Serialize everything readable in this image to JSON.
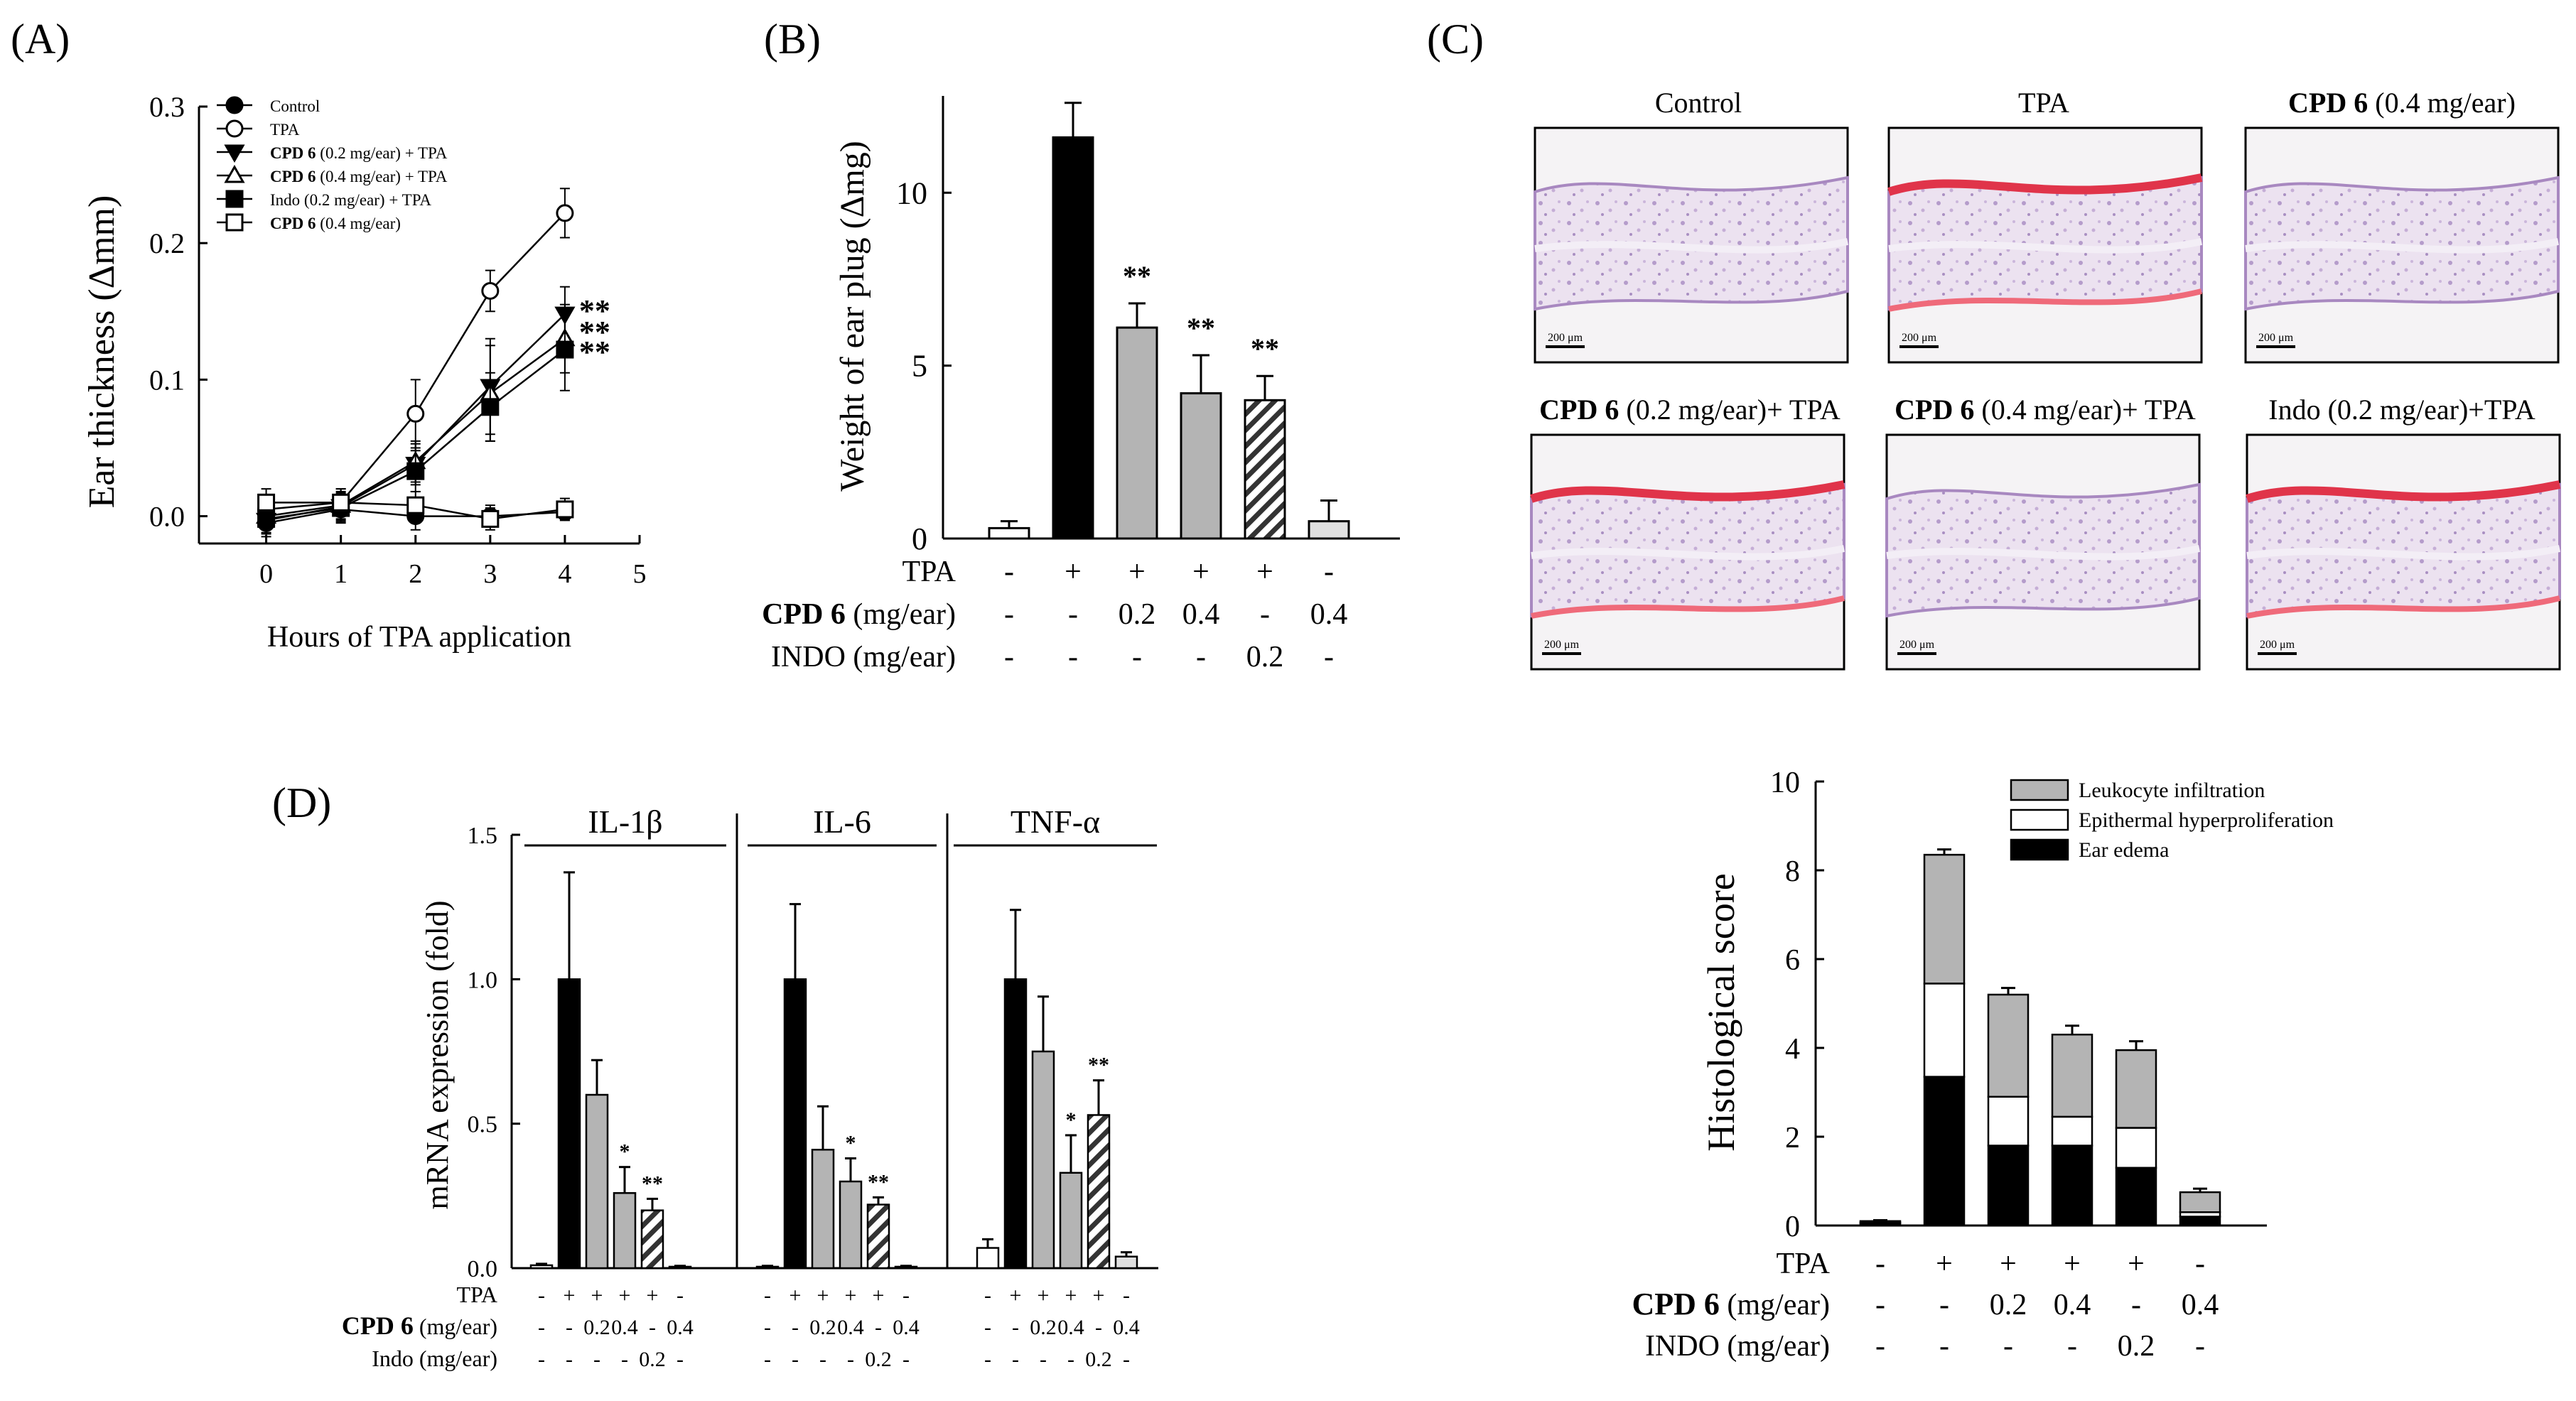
{
  "panel_labels": {
    "a": "(A)",
    "b": "(B)",
    "c": "(C)",
    "d": "(D)"
  },
  "colors": {
    "black": "#000000",
    "gray": "#b4b4b4",
    "light": "#e0e0e0",
    "white": "#ffffff"
  },
  "chart_data": [
    {
      "id": "A",
      "type": "line",
      "xlabel": "Hours of TPA application",
      "ylabel": "Ear thickness (Δmm)",
      "x_ticks": [
        "0",
        "1",
        "2",
        "3",
        "4",
        "5"
      ],
      "y_ticks": [
        "0.0",
        "0.1",
        "0.2",
        "0.3"
      ],
      "xlim": [
        -0.9,
        5
      ],
      "ylim": [
        -0.02,
        0.3
      ],
      "x": [
        0,
        1,
        2,
        3,
        4
      ],
      "series": [
        {
          "name": "Control",
          "marker": "filled-circle",
          "values": [
            -0.005,
            0.005,
            0.0,
            0.0,
            0.003
          ],
          "errors": [
            0.01,
            0.01,
            0.01,
            0.008,
            0.006
          ]
        },
        {
          "name": "TPA",
          "marker": "open-circle",
          "values": [
            0.005,
            0.01,
            0.075,
            0.165,
            0.222
          ],
          "errors": [
            0.01,
            0.01,
            0.025,
            0.015,
            0.018
          ]
        },
        {
          "name": "CPD 6 (0.2 mg/ear) + TPA",
          "marker": "filled-triangle-down",
          "values": [
            -0.003,
            0.007,
            0.038,
            0.095,
            0.148
          ],
          "errors": [
            0.01,
            0.01,
            0.015,
            0.035,
            0.02
          ]
        },
        {
          "name": "CPD 6 (0.4 mg/ear) + TPA",
          "marker": "open-triangle-up",
          "values": [
            0.0,
            0.008,
            0.04,
            0.09,
            0.13
          ],
          "errors": [
            0.01,
            0.01,
            0.015,
            0.035,
            0.025
          ]
        },
        {
          "name": "Indo (0.2 mg/ear) + TPA",
          "marker": "filled-square",
          "values": [
            -0.002,
            0.006,
            0.033,
            0.08,
            0.122
          ],
          "errors": [
            0.01,
            0.01,
            0.015,
            0.025,
            0.03
          ]
        },
        {
          "name": "CPD 6 (0.4 mg/ear)",
          "marker": "open-square",
          "values": [
            0.01,
            0.01,
            0.008,
            -0.002,
            0.005
          ],
          "errors": [
            0.01,
            0.01,
            0.01,
            0.008,
            0.008
          ]
        }
      ],
      "annotations": [
        {
          "text": "**",
          "series": 2
        },
        {
          "text": "**",
          "series": 3
        },
        {
          "text": "**",
          "series": 4
        }
      ]
    },
    {
      "id": "B",
      "type": "bar",
      "ylabel": "Weight of ear plug (Δmg)",
      "y_ticks": [
        "0",
        "5",
        "10"
      ],
      "ylim": [
        0,
        12.8
      ],
      "values": [
        0.3,
        11.6,
        6.1,
        4.2,
        4.0,
        0.5
      ],
      "errors": [
        0.2,
        1.0,
        0.7,
        1.1,
        0.7,
        0.6
      ],
      "bar_styles": [
        "white",
        "black",
        "gray",
        "gray",
        "hatch",
        "light"
      ],
      "significance": [
        "",
        "",
        "**",
        "**",
        "**",
        ""
      ],
      "row_labels": [
        "TPA",
        "CPD 6",
        " (mg/ear)",
        "INDO (mg/ear)"
      ],
      "rows": [
        [
          "-",
          "+",
          "+",
          "+",
          "+",
          "-"
        ],
        [
          "-",
          "-",
          "0.2",
          "0.4",
          "-",
          "0.4"
        ],
        [
          "-",
          "-",
          "-",
          "-",
          "0.2",
          "-"
        ]
      ]
    },
    {
      "id": "D",
      "type": "bar",
      "ylabel": "mRNA expression (fold)",
      "y_ticks": [
        "0.0",
        "0.5",
        "1.0",
        "1.5"
      ],
      "ylim": [
        0,
        1.5
      ],
      "groups": [
        {
          "name": "IL-1β",
          "values": [
            0.01,
            1.0,
            0.6,
            0.26,
            0.2,
            0.005
          ],
          "errors": [
            0.005,
            0.37,
            0.12,
            0.09,
            0.04,
            0.003
          ],
          "significance": [
            "",
            "",
            "",
            "*",
            "**",
            ""
          ]
        },
        {
          "name": "IL-6",
          "values": [
            0.005,
            1.0,
            0.41,
            0.3,
            0.22,
            0.005
          ],
          "errors": [
            0.003,
            0.26,
            0.15,
            0.08,
            0.025,
            0.003
          ],
          "significance": [
            "",
            "",
            "",
            "*",
            "**",
            ""
          ]
        },
        {
          "name": "TNF-α",
          "values": [
            0.07,
            1.0,
            0.75,
            0.33,
            0.53,
            0.04
          ],
          "errors": [
            0.03,
            0.24,
            0.19,
            0.13,
            0.12,
            0.015
          ],
          "significance": [
            "",
            "",
            "",
            "*",
            "**",
            ""
          ]
        }
      ],
      "bar_styles": [
        "white",
        "black",
        "gray",
        "gray",
        "hatch",
        "light"
      ],
      "row_labels": [
        "TPA",
        "CPD 6",
        " (mg/ear)",
        "Indo (mg/ear)"
      ],
      "rows": [
        [
          "-",
          "+",
          "+",
          "+",
          "+",
          "-"
        ],
        [
          "-",
          "-",
          "0.2",
          "0.4",
          "-",
          "0.4"
        ],
        [
          "-",
          "-",
          "-",
          "-",
          "0.2",
          "-"
        ]
      ]
    },
    {
      "id": "E",
      "type": "bar",
      "stacked": true,
      "ylabel": "Histological score",
      "y_ticks": [
        "0",
        "2",
        "4",
        "6",
        "8",
        "10"
      ],
      "ylim": [
        0,
        10
      ],
      "legend": [
        "Leukocyte infiltration",
        "Epithermal hyperproliferation",
        "Ear edema"
      ],
      "series": [
        {
          "name": "Ear edema",
          "color": "#000000",
          "values": [
            0.05,
            3.35,
            1.8,
            1.8,
            1.3,
            0.2
          ],
          "errors": [
            0.02,
            0.15,
            0.2,
            0.2,
            0.25,
            0.05
          ]
        },
        {
          "name": "Epithermal hyperproliferation",
          "color": "#ffffff",
          "values": [
            0.02,
            2.1,
            1.1,
            0.65,
            0.9,
            0.1
          ],
          "errors": [
            0.02,
            0.2,
            0.15,
            0.15,
            0.15,
            0.05
          ]
        },
        {
          "name": "Leukocyte infiltration",
          "color": "#b4b4b4",
          "values": [
            0.03,
            2.9,
            2.3,
            1.85,
            1.75,
            0.45
          ],
          "errors": [
            0.02,
            0.12,
            0.15,
            0.2,
            0.2,
            0.08
          ]
        }
      ],
      "row_labels": [
        "TPA",
        "CPD 6",
        " (mg/ear)",
        "INDO (mg/ear)"
      ],
      "rows": [
        [
          "-",
          "+",
          "+",
          "+",
          "+",
          "-"
        ],
        [
          "-",
          "-",
          "0.2",
          "0.4",
          "-",
          "0.4"
        ],
        [
          "-",
          "-",
          "-",
          "-",
          "0.2",
          "-"
        ]
      ]
    }
  ],
  "panel_c": {
    "scale_label": "200 μm",
    "images": [
      {
        "title_bold": "",
        "title": "Control",
        "stain": "plain"
      },
      {
        "title_bold": "",
        "title": "TPA",
        "stain": "red"
      },
      {
        "title_bold": "CPD 6",
        "title": " (0.4 mg/ear)",
        "stain": "plain"
      },
      {
        "title_bold": "CPD 6",
        "title": " (0.2 mg/ear)+ TPA",
        "stain": "red"
      },
      {
        "title_bold": "CPD 6",
        "title": " (0.4 mg/ear)+ TPA",
        "stain": "plain"
      },
      {
        "title_bold": "",
        "title": "Indo (0.2 mg/ear)+TPA",
        "stain": "red"
      }
    ]
  }
}
